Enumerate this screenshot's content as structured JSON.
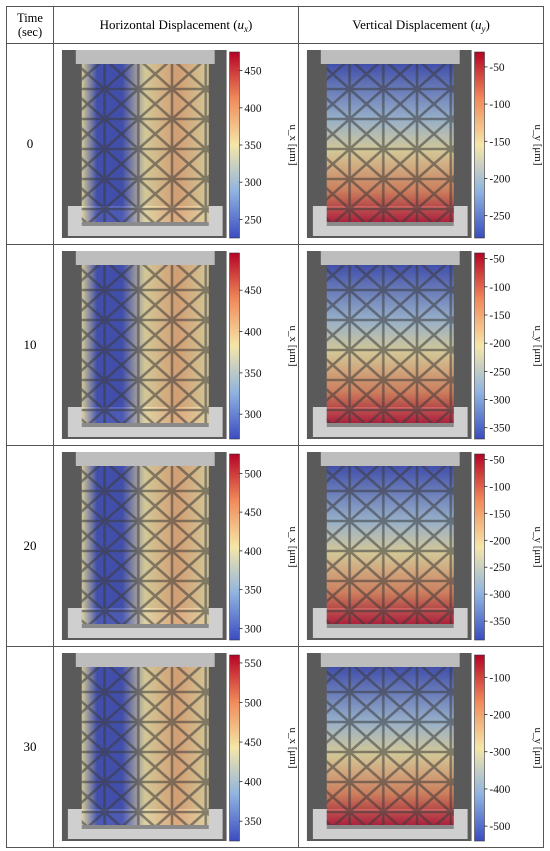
{
  "headers": {
    "time_line1": "Time",
    "time_line2": "(sec)",
    "horizontal_text": "Horizontal Displacement (",
    "horizontal_symbol": "u",
    "horizontal_sub": "x",
    "horizontal_close": ")",
    "vertical_text": "Vertical Displacement (",
    "vertical_symbol": "u",
    "vertical_sub": "y",
    "vertical_close": ")"
  },
  "colorbar_labels": {
    "horizontal": "u_x [μm]",
    "vertical": "u_y [μm]"
  },
  "colors": {
    "high": "#b40426",
    "mid": "#f5e6a8",
    "low": "#3b4cc0",
    "background_gray": "#5a5a5a",
    "grip_gray": "#bdbdbd"
  },
  "rows": [
    {
      "time": "0",
      "horizontal": {
        "ticks": [
          "450",
          "400",
          "350",
          "300",
          "250"
        ],
        "vmin": 225,
        "vmax": 475
      },
      "vertical": {
        "ticks": [
          "-50",
          "-100",
          "-150",
          "-200",
          "-250"
        ],
        "vmin": -280,
        "vmax": -30
      }
    },
    {
      "time": "10",
      "horizontal": {
        "ticks": [
          "450",
          "400",
          "350",
          "300"
        ],
        "vmin": 270,
        "vmax": 495
      },
      "vertical": {
        "ticks": [
          "-50",
          "-100",
          "-150",
          "-200",
          "-250",
          "-300",
          "-350"
        ],
        "vmin": -370,
        "vmax": -40
      }
    },
    {
      "time": "20",
      "horizontal": {
        "ticks": [
          "500",
          "450",
          "400",
          "350",
          "300"
        ],
        "vmin": 285,
        "vmax": 525
      },
      "vertical": {
        "ticks": [
          "-50",
          "-100",
          "-150",
          "-200",
          "-250",
          "-300",
          "-350"
        ],
        "vmin": -385,
        "vmax": -40
      }
    },
    {
      "time": "30",
      "horizontal": {
        "ticks": [
          "550",
          "500",
          "450",
          "400",
          "350"
        ],
        "vmin": 325,
        "vmax": 560
      },
      "vertical": {
        "ticks": [
          "-100",
          "-200",
          "-300",
          "-400",
          "-500"
        ],
        "vmin": -540,
        "vmax": -40
      }
    }
  ]
}
